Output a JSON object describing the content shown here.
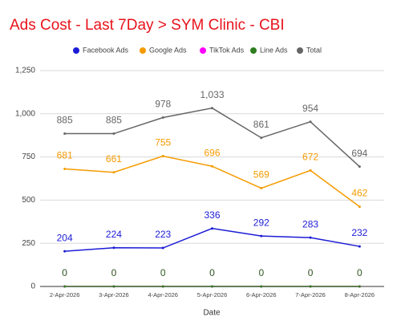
{
  "chart_data": {
    "type": "line",
    "title": "Ads Cost - Last 7Day > SYM Clinic - CBI",
    "x_label": "Date",
    "categories": [
      "2-Apr-2026",
      "3-Apr-2026",
      "4-Apr-2026",
      "5-Apr-2026",
      "6-Apr-2026",
      "7-Apr-2026",
      "8-Apr-2026"
    ],
    "series": [
      {
        "name": "Facebook Ads",
        "color": "#1c1cd6",
        "values": [
          204,
          224,
          223,
          336,
          292,
          283,
          232
        ]
      },
      {
        "name": "Google Ads",
        "color": "#f59b00",
        "values": [
          681,
          661,
          755,
          696,
          569,
          672,
          462
        ]
      },
      {
        "name": "TikTok Ads",
        "color": "#ff00ff",
        "values": [
          0,
          0,
          0,
          0,
          0,
          0,
          0
        ]
      },
      {
        "name": "Line Ads",
        "color": "#2e7d1f",
        "values": [
          0,
          0,
          0,
          0,
          0,
          0,
          0
        ]
      },
      {
        "name": "Total",
        "color": "#666666",
        "values": [
          885,
          885,
          978,
          1033,
          861,
          954,
          694
        ],
        "value_labels": [
          "885",
          "885",
          "978",
          "1,033",
          "861",
          "954",
          "694"
        ]
      }
    ],
    "ylim": [
      0,
      1250
    ],
    "yticks": [
      0,
      250,
      500,
      750,
      {
        "value": 1000,
        "label": "1,000"
      },
      {
        "value": 1250,
        "label": "1,250"
      }
    ],
    "grid": true,
    "legend": "top"
  }
}
